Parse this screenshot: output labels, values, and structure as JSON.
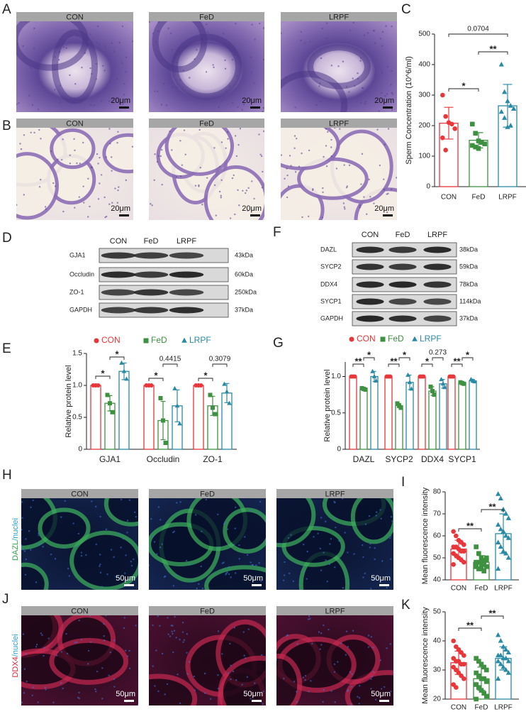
{
  "image_rows": [
    {
      "panel": "A",
      "labels": [
        "CON",
        "FeD",
        "LRPF"
      ],
      "scale_bar": "20μm"
    },
    {
      "panel": "B",
      "labels": [
        "CON",
        "FeD",
        "LRPF"
      ],
      "scale_bar": "20μm"
    },
    {
      "panel": "H",
      "labels": [
        "CON",
        "FeD",
        "LRPF"
      ],
      "scale_bar": "50μm",
      "stain": [
        "DAZL",
        "/nuclei"
      ]
    },
    {
      "panel": "J",
      "labels": [
        "CON",
        "FeD",
        "LRPF"
      ],
      "scale_bar": "50μm",
      "stain": [
        "DDX4",
        "/nuclei"
      ]
    }
  ],
  "blots": [
    {
      "panel": "D",
      "lanes": [
        "CON",
        "FeD",
        "LRPF"
      ],
      "rows": [
        {
          "protein": "GJA1",
          "size": "43kDa"
        },
        {
          "protein": "Occludin",
          "size": "60kDa"
        },
        {
          "protein": "ZO-1",
          "size": "250kDa"
        },
        {
          "protein": "GAPDH",
          "size": "37kDa"
        }
      ]
    },
    {
      "panel": "F",
      "lanes": [
        "CON",
        "FeD",
        "LRPF"
      ],
      "rows": [
        {
          "protein": "DAZL",
          "size": "38kDa"
        },
        {
          "protein": "SYCP2",
          "size": "59kDa"
        },
        {
          "protein": "DDX4",
          "size": "78kDa"
        },
        {
          "protein": "SYCP1",
          "size": "114kDa"
        },
        {
          "protein": "GAPDH",
          "size": "37kDa"
        }
      ]
    }
  ],
  "chart_data": [
    {
      "panel": "C",
      "type": "bar",
      "ylabel": "Sperm Concentration (10^6/ml)",
      "categories": [
        "CON",
        "FeD",
        "LRPF"
      ],
      "colors": [
        "#e8363a",
        "#3d9140",
        "#2a8aa6"
      ],
      "markers": [
        "circle",
        "square",
        "triangle"
      ],
      "values": [
        208,
        152,
        265
      ],
      "errors": [
        52,
        25,
        70
      ],
      "points": [
        [
          300,
          230,
          210,
          205,
          190,
          160,
          120
        ],
        [
          205,
          175,
          150,
          145,
          140,
          135,
          130,
          125
        ],
        [
          400,
          310,
          280,
          265,
          255,
          245,
          225,
          195,
          200
        ]
      ],
      "ylim": [
        0,
        500
      ],
      "yticks": [
        0,
        100,
        200,
        300,
        400,
        500
      ],
      "annotations": [
        "0.0704",
        "*",
        "**"
      ]
    },
    {
      "panel": "E",
      "type": "bar",
      "ylabel": "Relative protein level",
      "categories": [
        "GJA1",
        "Occludin",
        "ZO-1"
      ],
      "ylim": [
        0,
        1.5
      ],
      "yticks": [
        0,
        0.5,
        {
          "value": 1,
          "label": "1.0"
        },
        1.5
      ],
      "legend": true,
      "series": [
        {
          "name": "CON",
          "color": "#e8363a",
          "marker": "circle",
          "values": [
            1,
            1,
            1
          ],
          "errors": [
            0,
            0,
            0
          ],
          "points": [
            [
              1,
              1,
              1
            ],
            [
              1,
              1,
              1
            ],
            [
              1,
              1,
              1
            ]
          ]
        },
        {
          "name": "FeD",
          "color": "#3d9140",
          "marker": "square",
          "values": [
            0.72,
            0.45,
            0.68
          ],
          "errors": [
            0.12,
            0.3,
            0.15
          ],
          "points": [
            [
              0.85,
              0.72,
              0.58
            ],
            [
              0.8,
              0.45,
              0.1
            ],
            [
              0.85,
              0.65,
              0.55
            ]
          ]
        },
        {
          "name": "LRPF",
          "color": "#2a8aa6",
          "marker": "triangle",
          "values": [
            1.22,
            0.68,
            0.88
          ],
          "errors": [
            0.13,
            0.25,
            0.15
          ],
          "points": [
            [
              1.35,
              1.22,
              1.1
            ],
            [
              0.95,
              0.68,
              0.4
            ],
            [
              1.02,
              0.9,
              0.72
            ]
          ]
        }
      ],
      "annotations": [
        "*",
        "*",
        "*",
        "0.4415",
        "*",
        "0.3079"
      ]
    },
    {
      "panel": "G",
      "type": "bar",
      "ylabel": "Relative protein level",
      "categories": [
        "DAZL",
        "SYCP2",
        "DDX4",
        "SYCP1"
      ],
      "ylim": [
        0,
        1.2
      ],
      "yticks": [
        0,
        0.5,
        {
          "value": 1,
          "label": "1.0"
        }
      ],
      "legend": true,
      "series": [
        {
          "name": "CON",
          "color": "#e8363a",
          "marker": "circle",
          "values": [
            1,
            1,
            1,
            1
          ],
          "errors": [
            0,
            0,
            0,
            0
          ],
          "points": [
            [
              1,
              1,
              1
            ],
            [
              1,
              1,
              1
            ],
            [
              1,
              1,
              1
            ],
            [
              1,
              1,
              1
            ]
          ]
        },
        {
          "name": "FeD",
          "color": "#3d9140",
          "marker": "square",
          "values": [
            0.83,
            0.6,
            0.8,
            0.91
          ],
          "errors": [
            0.01,
            0.03,
            0.06,
            0.01
          ],
          "points": [
            [
              0.84,
              0.83,
              0.82
            ],
            [
              0.63,
              0.6,
              0.57
            ],
            [
              0.86,
              0.8,
              0.75
            ],
            [
              0.92,
              0.91,
              0.9
            ]
          ]
        },
        {
          "name": "LRPF",
          "color": "#2a8aa6",
          "marker": "triangle",
          "values": [
            1,
            0.92,
            0.9,
            0.94
          ],
          "errors": [
            0.07,
            0.1,
            0.06,
            0.02
          ],
          "points": [
            [
              1.07,
              1,
              0.94
            ],
            [
              1.02,
              0.92,
              0.83
            ],
            [
              0.96,
              0.9,
              0.85
            ],
            [
              0.96,
              0.94,
              0.93
            ]
          ]
        }
      ],
      "annotations": [
        "**",
        "*",
        "**",
        "*",
        "*",
        "0.273",
        "**",
        "*"
      ]
    },
    {
      "panel": "I",
      "type": "bar",
      "ylabel": "Mean fluorescence intensity",
      "categories": [
        "CON",
        "FeD",
        "LRPF"
      ],
      "colors": [
        "#e8363a",
        "#3d9140",
        "#2a8aa6"
      ],
      "markers": [
        "circle",
        "square",
        "triangle"
      ],
      "values": [
        54,
        48,
        61
      ],
      "errors": [
        4,
        3,
        9
      ],
      "points": [
        [
          62,
          60,
          58,
          57,
          56,
          55,
          55,
          54,
          53,
          53,
          52,
          51,
          50,
          49,
          48,
          47
        ],
        [
          55,
          52,
          50,
          49,
          49,
          48,
          48,
          47,
          47,
          46,
          46,
          45,
          45,
          44,
          50,
          48
        ],
        [
          79,
          77,
          72,
          70,
          68,
          65,
          63,
          62,
          60,
          59,
          57,
          55,
          53,
          52,
          50,
          45
        ]
      ],
      "ylim": [
        40,
        80
      ],
      "yticks": [
        40,
        50,
        60,
        70,
        80
      ],
      "annotations": [
        "**",
        "**"
      ]
    },
    {
      "panel": "K",
      "type": "bar",
      "ylabel": "Mean fluorescence intensity",
      "categories": [
        "CON",
        "FeD",
        "LRPF"
      ],
      "colors": [
        "#e8363a",
        "#3d9140",
        "#2a8aa6"
      ],
      "markers": [
        "circle",
        "square",
        "triangle"
      ],
      "values": [
        32.5,
        27,
        34
      ],
      "errors": [
        4,
        4,
        4
      ],
      "points": [
        [
          40,
          38,
          37,
          36,
          35,
          34,
          33,
          33,
          32,
          32,
          31,
          30,
          29,
          28,
          27,
          25,
          24
        ],
        [
          34,
          33,
          32,
          31,
          30,
          29,
          28,
          27,
          27,
          26,
          25,
          24,
          23,
          22,
          21,
          20
        ],
        [
          42,
          40,
          38,
          37,
          36,
          35,
          35,
          34,
          34,
          33,
          33,
          32,
          31,
          30,
          29,
          27
        ]
      ],
      "ylim": [
        20,
        50
      ],
      "yticks": [
        20,
        30,
        40,
        50
      ],
      "annotations": [
        "**",
        "**"
      ]
    }
  ]
}
